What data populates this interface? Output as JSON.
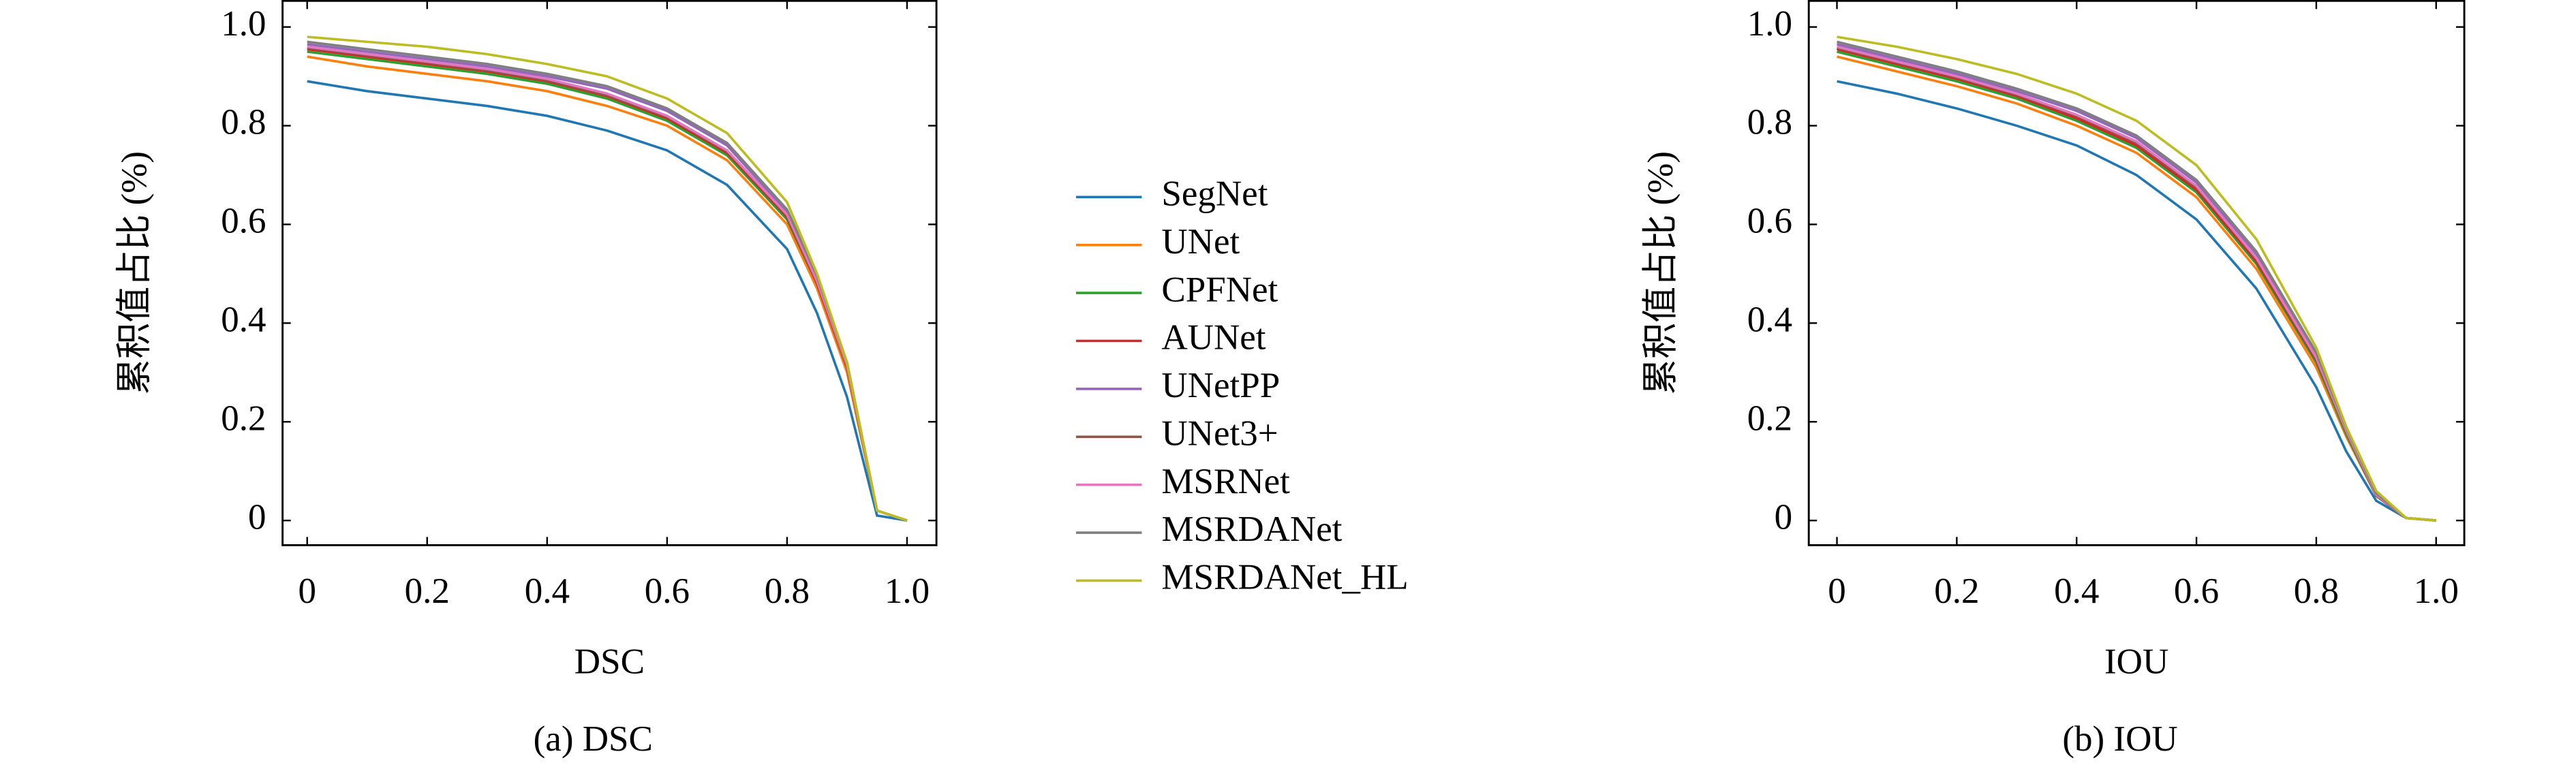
{
  "chart_data": [
    {
      "type": "line",
      "xlabel": "DSC",
      "ylabel": "累积值占比 (%)",
      "caption": "(a) DSC",
      "xlim": [
        -0.041,
        1.049
      ],
      "ylim": [
        -0.05,
        1.053
      ],
      "xticks": [
        0,
        0.2,
        0.4,
        0.6,
        0.8,
        {
          "value": 1,
          "label": "1.0"
        }
      ],
      "yticks": [
        0,
        0.2,
        0.4,
        0.6,
        0.8,
        {
          "value": 1,
          "label": "1.0"
        }
      ],
      "x": [
        0,
        0.1,
        0.2,
        0.3,
        0.4,
        0.5,
        0.6,
        0.7,
        0.8,
        0.85,
        0.9,
        0.95,
        1.0
      ],
      "series": [
        {
          "name": "SegNet",
          "color": "#1f77b4",
          "values": [
            0.89,
            0.87,
            0.855,
            0.84,
            0.82,
            0.79,
            0.75,
            0.68,
            0.55,
            0.42,
            0.25,
            0.01,
            0
          ]
        },
        {
          "name": "UNet",
          "color": "#ff7f0e",
          "values": [
            0.94,
            0.92,
            0.905,
            0.89,
            0.87,
            0.84,
            0.8,
            0.73,
            0.6,
            0.47,
            0.3,
            0.02,
            0
          ]
        },
        {
          "name": "CPFNet",
          "color": "#2ca02c",
          "values": [
            0.95,
            0.935,
            0.92,
            0.905,
            0.885,
            0.855,
            0.81,
            0.74,
            0.61,
            0.48,
            0.31,
            0.02,
            0
          ]
        },
        {
          "name": "AUNet",
          "color": "#d62728",
          "values": [
            0.955,
            0.94,
            0.925,
            0.91,
            0.89,
            0.86,
            0.815,
            0.745,
            0.615,
            0.48,
            0.31,
            0.02,
            0
          ]
        },
        {
          "name": "UNetPP",
          "color": "#9467bd",
          "values": [
            0.965,
            0.95,
            0.935,
            0.92,
            0.9,
            0.875,
            0.83,
            0.76,
            0.625,
            0.49,
            0.32,
            0.02,
            0
          ]
        },
        {
          "name": "UNet3+",
          "color": "#8c564b",
          "values": [
            0.958,
            0.943,
            0.928,
            0.912,
            0.892,
            0.862,
            0.818,
            0.748,
            0.618,
            0.483,
            0.312,
            0.02,
            0
          ]
        },
        {
          "name": "MSRNet",
          "color": "#e377c2",
          "values": [
            0.96,
            0.945,
            0.93,
            0.915,
            0.895,
            0.865,
            0.82,
            0.75,
            0.62,
            0.485,
            0.315,
            0.02,
            0
          ]
        },
        {
          "name": "MSRDANet",
          "color": "#7f7f7f",
          "values": [
            0.97,
            0.955,
            0.94,
            0.925,
            0.905,
            0.88,
            0.835,
            0.765,
            0.63,
            0.495,
            0.32,
            0.02,
            0
          ]
        },
        {
          "name": "MSRDANet_HL",
          "color": "#bcbd22",
          "values": [
            0.98,
            0.97,
            0.96,
            0.945,
            0.925,
            0.9,
            0.855,
            0.785,
            0.645,
            0.5,
            0.32,
            0.02,
            0
          ]
        }
      ]
    },
    {
      "type": "line",
      "xlabel": "IOU",
      "ylabel": "累积值占比 (%)",
      "caption": "(b) IOU",
      "xlim": [
        -0.047,
        1.047
      ],
      "ylim": [
        -0.05,
        1.053
      ],
      "xticks": [
        0,
        0.2,
        0.4,
        0.6,
        0.8,
        {
          "value": 1,
          "label": "1.0"
        }
      ],
      "yticks": [
        0,
        0.2,
        0.4,
        0.6,
        0.8,
        {
          "value": 1,
          "label": "1.0"
        }
      ],
      "x": [
        0,
        0.1,
        0.2,
        0.3,
        0.4,
        0.5,
        0.6,
        0.7,
        0.8,
        0.85,
        0.9,
        0.95,
        1.0
      ],
      "series": [
        {
          "color": "#1f77b4",
          "values": [
            0.89,
            0.865,
            0.835,
            0.8,
            0.76,
            0.7,
            0.61,
            0.47,
            0.27,
            0.14,
            0.04,
            0.005,
            0
          ]
        },
        {
          "color": "#ff7f0e",
          "values": [
            0.94,
            0.91,
            0.88,
            0.845,
            0.8,
            0.745,
            0.655,
            0.51,
            0.31,
            0.17,
            0.05,
            0.005,
            0
          ]
        },
        {
          "color": "#2ca02c",
          "values": [
            0.95,
            0.92,
            0.89,
            0.855,
            0.81,
            0.755,
            0.665,
            0.52,
            0.32,
            0.175,
            0.05,
            0.005,
            0
          ]
        },
        {
          "color": "#d62728",
          "values": [
            0.955,
            0.925,
            0.895,
            0.86,
            0.815,
            0.76,
            0.67,
            0.525,
            0.325,
            0.18,
            0.05,
            0.005,
            0
          ]
        },
        {
          "color": "#9467bd",
          "values": [
            0.965,
            0.935,
            0.905,
            0.87,
            0.83,
            0.775,
            0.685,
            0.54,
            0.335,
            0.185,
            0.055,
            0.005,
            0
          ]
        },
        {
          "color": "#8c564b",
          "values": [
            0.958,
            0.928,
            0.898,
            0.863,
            0.82,
            0.765,
            0.675,
            0.53,
            0.328,
            0.18,
            0.05,
            0.005,
            0
          ]
        },
        {
          "color": "#e377c2",
          "values": [
            0.96,
            0.93,
            0.9,
            0.865,
            0.822,
            0.768,
            0.678,
            0.532,
            0.33,
            0.182,
            0.052,
            0.005,
            0
          ]
        },
        {
          "color": "#7f7f7f",
          "values": [
            0.97,
            0.94,
            0.91,
            0.875,
            0.835,
            0.78,
            0.69,
            0.545,
            0.34,
            0.188,
            0.055,
            0.005,
            0
          ]
        },
        {
          "color": "#bcbd22",
          "values": [
            0.98,
            0.96,
            0.935,
            0.905,
            0.865,
            0.81,
            0.72,
            0.57,
            0.35,
            0.19,
            0.06,
            0.005,
            0
          ]
        }
      ]
    }
  ]
}
